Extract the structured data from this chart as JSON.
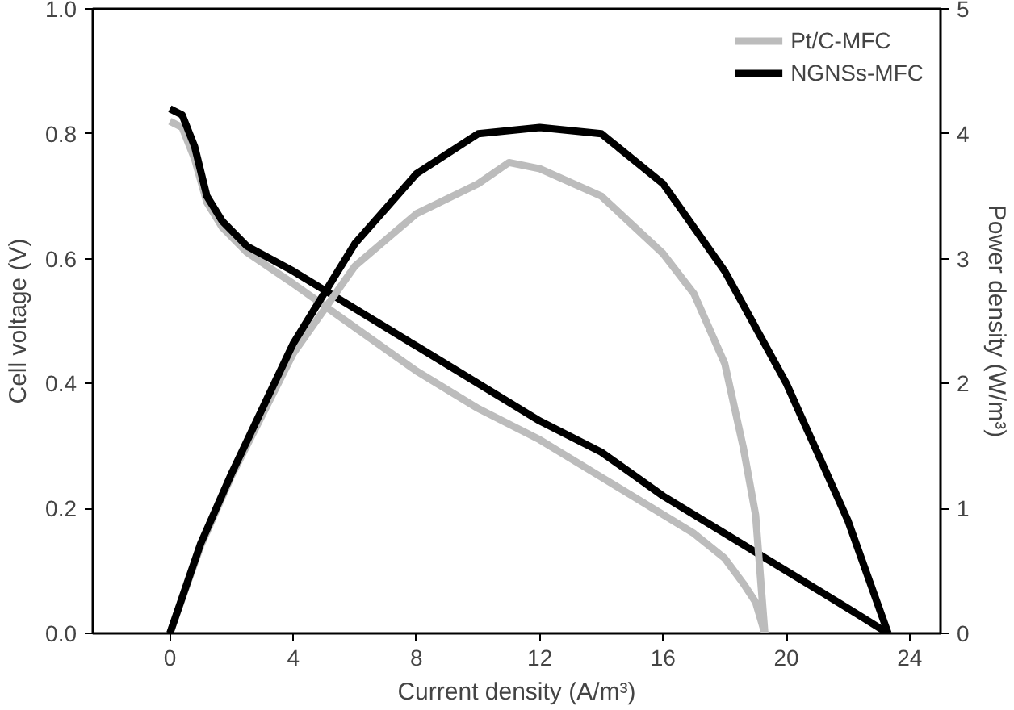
{
  "chart_data": {
    "type": "line",
    "xlabel": "Current density (A/m³)",
    "ylabel": "Cell voltage (V)",
    "y2label": "Power density (W/m³)",
    "xlim": [
      -2.5,
      25
    ],
    "xticks": [
      0,
      4,
      8,
      12,
      16,
      20,
      24
    ],
    "ylim": [
      0,
      1.0
    ],
    "yticks": [
      {
        "value": 0,
        "label": "0.0"
      },
      0.2,
      0.4,
      0.6,
      0.8,
      {
        "value": 1,
        "label": "1.0"
      }
    ],
    "y2lim": [
      0,
      5
    ],
    "y2ticks": [
      0,
      1,
      2,
      3,
      4,
      5
    ],
    "grid": false,
    "legend": "top right",
    "marker": "none",
    "line_style": "solid",
    "series": [
      {
        "name": "Pt/C-MFC",
        "color": "#bcbcbc",
        "x": [
          0,
          0.4,
          0.8,
          1.2,
          1.7,
          2.5,
          4,
          6,
          8,
          10,
          12,
          14,
          16,
          17,
          18,
          18.6,
          19,
          19.3
        ],
        "values": [
          0.82,
          0.81,
          0.76,
          0.69,
          0.65,
          0.61,
          0.56,
          0.49,
          0.42,
          0.36,
          0.31,
          0.25,
          0.19,
          0.16,
          0.12,
          0.08,
          0.05,
          0
        ]
      },
      {
        "name": "NGNSs-MFC",
        "color": "#000000",
        "x": [
          0,
          0.4,
          0.8,
          1.2,
          1.7,
          2.5,
          4,
          6,
          8,
          10,
          12,
          14,
          16,
          18,
          20,
          22,
          23.3
        ],
        "values": [
          0.84,
          0.83,
          0.78,
          0.7,
          0.66,
          0.62,
          0.58,
          0.52,
          0.46,
          0.4,
          0.34,
          0.29,
          0.22,
          0.16,
          0.1,
          0.04,
          0
        ]
      },
      {
        "color": "#bcbcbc",
        "axis": "y2",
        "x": [
          0,
          1,
          2,
          4,
          6,
          8,
          10,
          11,
          12,
          14,
          16,
          17,
          18,
          18.6,
          19,
          19.3
        ],
        "values": [
          0,
          0.7,
          1.26,
          2.24,
          2.94,
          3.36,
          3.6,
          3.77,
          3.72,
          3.5,
          3.04,
          2.72,
          2.16,
          1.49,
          0.95,
          0
        ]
      },
      {
        "color": "#000000",
        "axis": "y2",
        "x": [
          0,
          1,
          2,
          4,
          6,
          8,
          10,
          12,
          14,
          16,
          18,
          20,
          22,
          23.3
        ],
        "values": [
          0,
          0.72,
          1.28,
          2.32,
          3.12,
          3.68,
          4.0,
          4.05,
          4.0,
          3.6,
          2.9,
          2.0,
          0.9,
          0
        ]
      }
    ]
  }
}
